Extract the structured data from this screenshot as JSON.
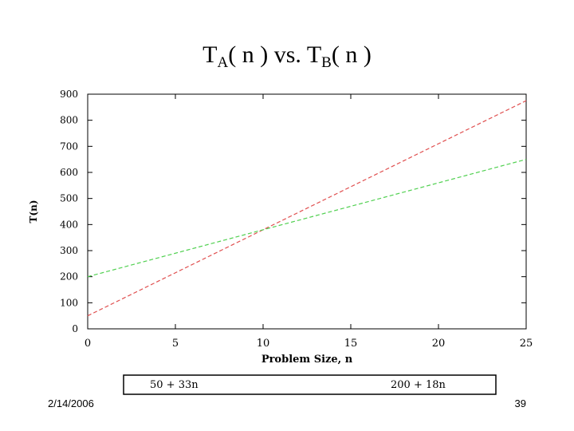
{
  "slide": {
    "title_a": "T",
    "title_a_sub": "A",
    "title_mid": "( n ) vs. T",
    "title_b_sub": "B",
    "title_end": "( n )",
    "date": "2/14/2006",
    "page": "39"
  },
  "chart_data": {
    "type": "line",
    "title": "",
    "xlabel": "Problem Size, n",
    "ylabel": "T(n)",
    "xlim": [
      0,
      25
    ],
    "ylim": [
      0,
      900
    ],
    "xticks": [
      0,
      5,
      10,
      15,
      20,
      25
    ],
    "yticks": [
      0,
      100,
      200,
      300,
      400,
      500,
      600,
      700,
      800,
      900
    ],
    "grid": false,
    "legend_position": "bottom",
    "series": [
      {
        "name": "50 + 33n",
        "x": [
          0,
          25
        ],
        "y": [
          50,
          875
        ],
        "color": "#e05050",
        "dash": "dashed"
      },
      {
        "name": "200 + 18n",
        "x": [
          0,
          25
        ],
        "y": [
          200,
          650
        ],
        "color": "#50d050",
        "dash": "dashed"
      }
    ]
  }
}
